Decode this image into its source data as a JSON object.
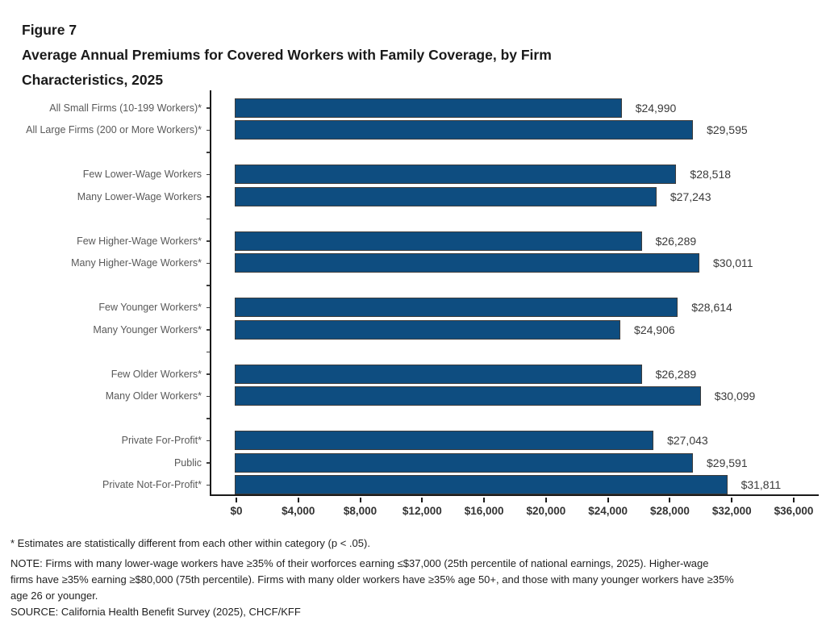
{
  "header": {
    "figure_label": "Figure 7",
    "title_lines": [
      "Average Annual Premiums for Covered Workers with Family Coverage, by Firm",
      "Characteristics, 2025"
    ]
  },
  "footnotes": {
    "lines": [
      "* Estimates are statistically different from each other within category (p < .05).",
      "NOTE: Firms with many lower-wage workers have ≥35% of their worforces earning ≤$37,000 (25th percentile of national earnings, 2025). Higher-wage",
      "firms have ≥35% earning ≥$80,000 (75th percentile). Firms with many older workers have ≥35% age 50+, and those with many younger workers have ≥35%",
      "age 26 or younger.",
      "SOURCE: California Health Benefit Survey (2025), CHCF/KFF"
    ]
  },
  "chart_data": {
    "type": "bar",
    "orientation": "horizontal",
    "title": "Average Annual Premiums for Covered Workers with Family Coverage, by Firm Characteristics, 2025",
    "xlabel": "",
    "ylabel": "",
    "xlim": [
      0,
      36000
    ],
    "x_tick_values": [
      0,
      4000,
      8000,
      12000,
      16000,
      20000,
      24000,
      28000,
      32000,
      36000
    ],
    "x_tick_labels": [
      "$0",
      "$4,000",
      "$8,000",
      "$12,000",
      "$16,000",
      "$20,000",
      "$24,000",
      "$28,000",
      "$32,000",
      "$36,000"
    ],
    "grid": false,
    "legend": false,
    "bar_color": "#0E4D80",
    "bar_border_color": "#3C3C3C",
    "groups": [
      [
        {
          "label": "All Small Firms (10-199 Workers)*",
          "value": 24990,
          "value_label": "$24,990"
        },
        {
          "label": "All Large Firms (200 or More Workers)*",
          "value": 29595,
          "value_label": "$29,595"
        }
      ],
      [
        {
          "label": "Few Lower-Wage Workers",
          "value": 28518,
          "value_label": "$28,518"
        },
        {
          "label": "Many Lower-Wage Workers",
          "value": 27243,
          "value_label": "$27,243"
        }
      ],
      [
        {
          "label": "Few Higher-Wage Workers*",
          "value": 26289,
          "value_label": "$26,289"
        },
        {
          "label": "Many Higher-Wage Workers*",
          "value": 30011,
          "value_label": "$30,011"
        }
      ],
      [
        {
          "label": "Few Younger Workers*",
          "value": 28614,
          "value_label": "$28,614"
        },
        {
          "label": "Many Younger Workers*",
          "value": 24906,
          "value_label": "$24,906"
        }
      ],
      [
        {
          "label": "Few Older Workers*",
          "value": 26289,
          "value_label": "$26,289"
        },
        {
          "label": "Many Older Workers*",
          "value": 30099,
          "value_label": "$30,099"
        }
      ],
      [
        {
          "label": "Private For-Profit*",
          "value": 27043,
          "value_label": "$27,043"
        },
        {
          "label": "Public",
          "value": 29591,
          "value_label": "$29,591"
        },
        {
          "label": "Private Not-For-Profit*",
          "value": 31811,
          "value_label": "$31,811"
        }
      ]
    ]
  }
}
